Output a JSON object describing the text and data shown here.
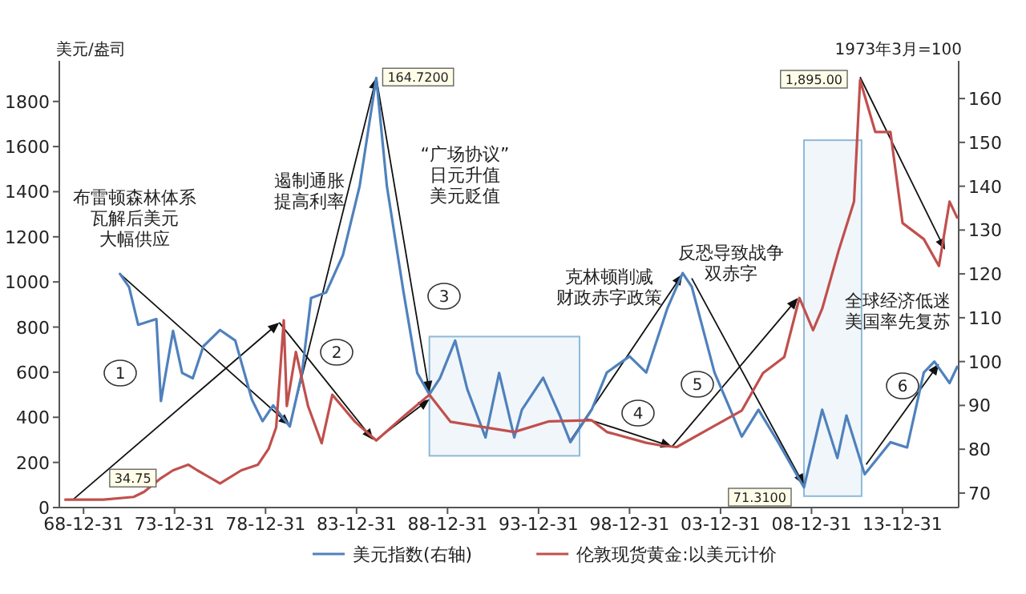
{
  "chart_data": {
    "type": "line",
    "ylabel": "美元/盎司",
    "y2label": "1973年3月=100",
    "xlim": [
      "1967-09-01",
      "2017-02-01"
    ],
    "xticks": [
      {
        "value": "1968-12-31",
        "label": "68-12-31"
      },
      {
        "value": "1973-12-31",
        "label": "73-12-31"
      },
      {
        "value": "1978-12-31",
        "label": "78-12-31"
      },
      {
        "value": "1983-12-31",
        "label": "83-12-31"
      },
      {
        "value": "1988-12-31",
        "label": "88-12-31"
      },
      {
        "value": "1993-12-31",
        "label": "93-12-31"
      },
      {
        "value": "1998-12-31",
        "label": "98-12-31"
      },
      {
        "value": "2003-12-31",
        "label": "03-12-31"
      },
      {
        "value": "2008-12-31",
        "label": "08-12-31"
      },
      {
        "value": "2013-12-31",
        "label": "13-12-31"
      }
    ],
    "ylim": [
      0,
      1980
    ],
    "yticks": [
      0,
      200,
      400,
      600,
      800,
      1000,
      1200,
      1400,
      1600,
      1800
    ],
    "y2lim": [
      66.7,
      168.6
    ],
    "y2ticks": [
      70,
      80,
      90,
      100,
      110,
      120,
      130,
      140,
      150,
      160
    ],
    "legend": "bottom",
    "series": [
      {
        "name": "美元指数(右轴)",
        "color": "#4f81bd",
        "axis": "y2",
        "x": [
          "1971-01",
          "1971-07",
          "1972-01",
          "1973-01",
          "1973-04",
          "1973-12",
          "1974-06",
          "1975-01",
          "1975-08",
          "1976-07",
          "1977-05",
          "1978-04",
          "1978-11",
          "1979-06",
          "1980-05",
          "1981-01",
          "1981-07",
          "1982-05",
          "1983-04",
          "1984-03",
          "1985-02",
          "1985-09",
          "1986-08",
          "1987-05",
          "1988-01",
          "1988-08",
          "1989-06",
          "1990-02",
          "1991-02",
          "1991-11",
          "1992-09",
          "1993-02",
          "1994-04",
          "1995-03",
          "1995-10",
          "1996-12",
          "1997-10",
          "1999-01",
          "1999-12",
          "2001-02",
          "2001-12",
          "2002-06",
          "2003-09",
          "2005-03",
          "2006-02",
          "2007-03",
          "2008-05",
          "2008-08",
          "2009-08",
          "2010-06",
          "2010-12",
          "2011-12",
          "2013-05",
          "2014-04",
          "2015-03",
          "2015-10",
          "2016-08",
          "2017-01"
        ],
        "values": [
          120,
          117,
          108.4,
          109.7,
          91,
          107,
          97.4,
          96.2,
          103.5,
          107.2,
          104.8,
          91.3,
          86.4,
          90,
          85.2,
          97.4,
          114.5,
          115.8,
          124.3,
          140,
          164.72,
          140,
          115.8,
          97.4,
          92.5,
          96.2,
          104.8,
          93.7,
          82.7,
          97.4,
          82.7,
          89,
          96.3,
          87.7,
          81.6,
          89,
          97.5,
          101.2,
          97.5,
          112.2,
          120.2,
          117.1,
          97.5,
          82.9,
          89,
          81.6,
          73.1,
          71.31,
          89,
          78,
          87.7,
          74.3,
          81.6,
          80.4,
          97.5,
          100,
          95.1,
          98.8
        ],
        "value_labels": [
          null,
          null,
          null,
          null,
          null,
          null,
          null,
          null,
          null,
          null,
          null,
          null,
          null,
          null,
          null,
          null,
          null,
          null,
          null,
          null,
          "164.7200",
          null,
          null,
          null,
          null,
          null,
          null,
          null,
          null,
          null,
          null,
          null,
          null,
          null,
          null,
          null,
          null,
          null,
          null,
          null,
          null,
          null,
          null,
          null,
          null,
          null,
          null,
          "71.3100",
          null,
          null,
          null,
          null,
          null,
          null,
          null,
          null,
          null,
          null
        ]
      },
      {
        "name": "伦敦现货黄金:以美元计价",
        "color": "#c0504d",
        "x": [
          "1968-01",
          "1970-02",
          "1971-10",
          "1972-05",
          "1973-04",
          "1973-12",
          "1974-10",
          "1975-04",
          "1976-07",
          "1977-09",
          "1978-08",
          "1979-03",
          "1979-08",
          "1980-01",
          "1980-03",
          "1980-09",
          "1981-05",
          "1982-02",
          "1982-09",
          "1983-12",
          "1985-02",
          "1986-08",
          "1988-01",
          "1989-03",
          "1991-01",
          "1992-09",
          "1994-08",
          "1996-12",
          "1997-10",
          "1999-12",
          "2000-10",
          "2001-08",
          "2003-05",
          "2005-03",
          "2006-05",
          "2007-07",
          "2008-05",
          "2009-02",
          "2009-08",
          "2010-07",
          "2011-05",
          "2011-09",
          "2012-07",
          "2013-05",
          "2014-01",
          "2015-03",
          "2016-01",
          "2016-08",
          "2017-01"
        ],
        "values": [
          35,
          34.75,
          47,
          70,
          130,
          165,
          190,
          165,
          107,
          165,
          190,
          260,
          356,
          830,
          450,
          690,
          450,
          285,
          500,
          380,
          297,
          404,
          500,
          380,
          356,
          335,
          382,
          387,
          335,
          287,
          275,
          268,
          347,
          430,
          596,
          667,
          929,
          786,
          881,
          1142,
          1356,
          1895,
          1665,
          1665,
          1261,
          1190,
          1071,
          1356,
          1285
        ],
        "value_labels": [
          null,
          "34.75",
          null,
          null,
          null,
          null,
          null,
          null,
          null,
          null,
          null,
          null,
          null,
          null,
          null,
          null,
          null,
          null,
          null,
          null,
          null,
          null,
          null,
          null,
          null,
          null,
          null,
          null,
          null,
          null,
          null,
          null,
          null,
          null,
          null,
          null,
          null,
          null,
          null,
          null,
          null,
          "1,895.00",
          null,
          null,
          null,
          null,
          null,
          null,
          null
        ]
      }
    ],
    "bands": [
      {
        "axis": "x",
        "from": "1988-01",
        "to": "1996-04",
        "color": "#8db9d9"
      },
      {
        "axis": "x",
        "from": "2008-08",
        "to": "2011-10",
        "color": "#8db9d9"
      }
    ],
    "annotations": [
      "布雷顿森林体系瓦解后美元大幅供应",
      "遏制通胀提高利率",
      "“广场协议”日元升值美元贬值",
      "克林顿削减财政赤字政策",
      "反恐导致战争双赤字",
      "全球经济低迷美国率先复苏",
      "1",
      "2",
      "3",
      "4",
      "5",
      "6"
    ]
  }
}
